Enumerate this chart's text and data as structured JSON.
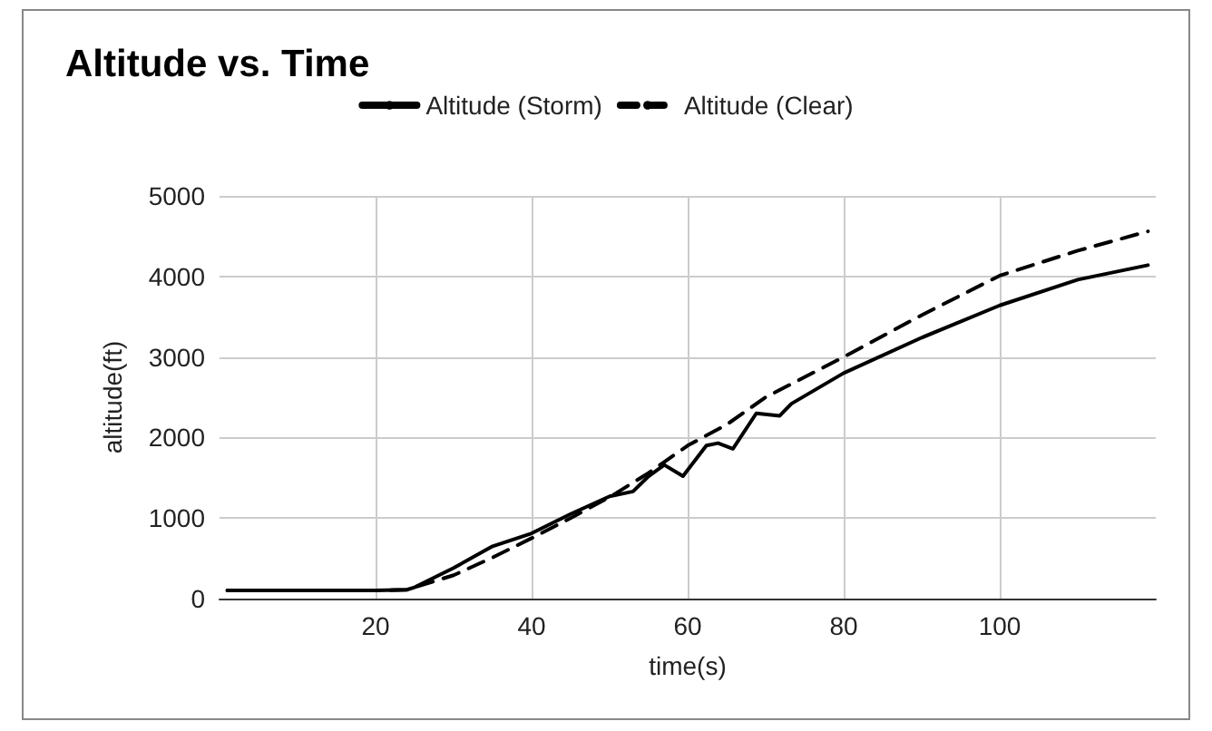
{
  "chart_data": {
    "type": "line",
    "title": "Altitude vs. Time",
    "xlabel": "time(s)",
    "ylabel": "altitude(ft)",
    "xlim": [
      0,
      120
    ],
    "xticks": [
      20,
      40,
      60,
      80,
      100
    ],
    "ylim": [
      0,
      5000
    ],
    "yticks": [
      0,
      1000,
      2000,
      3000,
      4000,
      5000
    ],
    "grid": true,
    "legend": "top",
    "marker": "none",
    "series": [
      {
        "name": "Altitude (Storm)",
        "color": "#000000",
        "line_style": "solid",
        "x": [
          1,
          10,
          20,
          24,
          25,
          30,
          35,
          40,
          45,
          50,
          53,
          55,
          57,
          59.4,
          62.4,
          63.9,
          65.8,
          68.8,
          71.8,
          73.3,
          80,
          90,
          100,
          110,
          119
        ],
        "values": [
          100,
          100,
          100,
          110,
          140,
          380,
          650,
          810,
          1050,
          1270,
          1330,
          1520,
          1660,
          1520,
          1900,
          1930,
          1860,
          2300,
          2270,
          2420,
          2800,
          3240,
          3640,
          3960,
          4140
        ]
      },
      {
        "name": "Altitude (Clear)",
        "color": "#000000",
        "line_style": "dashed",
        "x": [
          1,
          10,
          20,
          24,
          25,
          30,
          35,
          40,
          45,
          50,
          55,
          60,
          65,
          70,
          80,
          90,
          100,
          110,
          119
        ],
        "values": [
          100,
          100,
          100,
          110,
          140,
          290,
          510,
          750,
          1000,
          1260,
          1560,
          1900,
          2160,
          2500,
          3000,
          3520,
          4010,
          4320,
          4560
        ]
      }
    ]
  }
}
